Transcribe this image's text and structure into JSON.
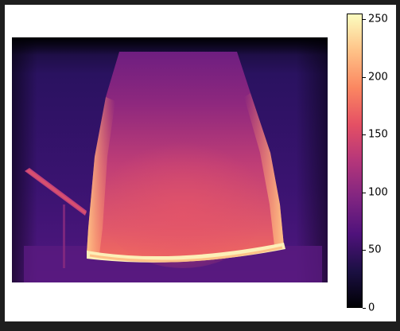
{
  "colors": {
    "background": "#1e1e1e",
    "figure": "#ffffff",
    "colormap": [
      "#000004",
      "#1c1044",
      "#4f127b",
      "#812581",
      "#b5367a",
      "#e55064",
      "#fb8761",
      "#fec287",
      "#fcfdbf"
    ]
  },
  "image": {
    "description_icon": "depth-map-heatmap",
    "colormap": "magma"
  },
  "colorbar": {
    "min": 0,
    "max": 255,
    "ticks": [
      {
        "value": 0,
        "label": "0"
      },
      {
        "value": 50,
        "label": "50"
      },
      {
        "value": 100,
        "label": "100"
      },
      {
        "value": 150,
        "label": "150"
      },
      {
        "value": 200,
        "label": "200"
      },
      {
        "value": 250,
        "label": "250"
      }
    ]
  }
}
